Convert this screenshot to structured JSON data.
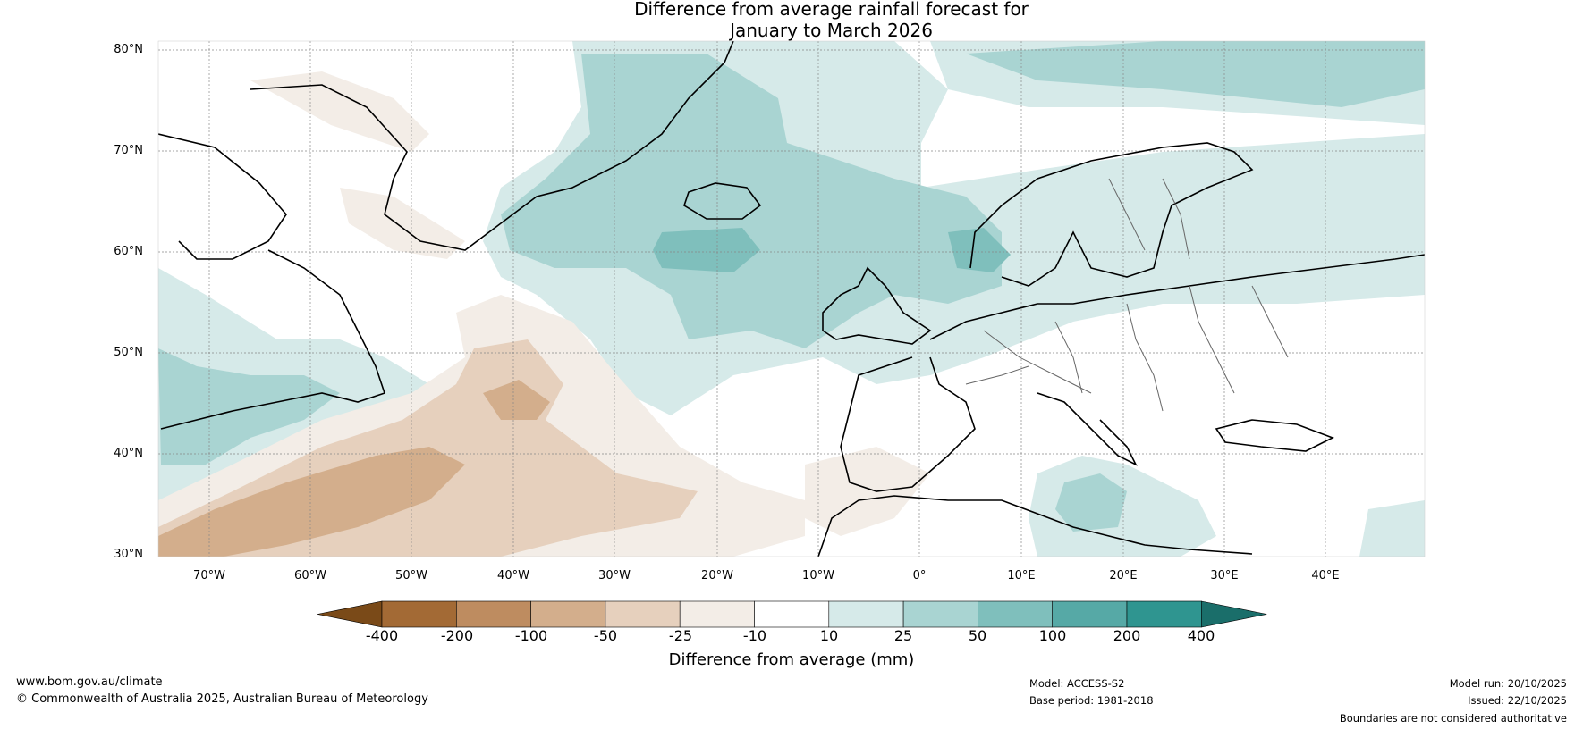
{
  "title_line1": "Difference from average rainfall forecast for",
  "title_line2": "January to March 2026",
  "lat_labels": [
    "80°N",
    "70°N",
    "60°N",
    "50°N",
    "40°N",
    "30°N"
  ],
  "lon_labels": [
    "70°W",
    "60°W",
    "50°W",
    "40°W",
    "30°W",
    "20°W",
    "10°W",
    "0°",
    "10°E",
    "20°E",
    "30°E",
    "40°E"
  ],
  "legend": {
    "title": "Difference from average (mm)",
    "ticks": [
      "-400",
      "-200",
      "-100",
      "-50",
      "-25",
      "-10",
      "10",
      "25",
      "50",
      "100",
      "200",
      "400"
    ],
    "colors": [
      "#7a4a18",
      "#a36a35",
      "#be8c60",
      "#d3ae8c",
      "#e6d0bd",
      "#f3ede7",
      "#ffffff",
      "#d6eae9",
      "#a9d4d2",
      "#7fbfbc",
      "#56a9a6",
      "#2f9590",
      "#1a6e6a"
    ]
  },
  "footer": {
    "website": "www.bom.gov.au/climate",
    "copyright": "© Commonwealth of Australia 2025, Australian Bureau of Meteorology",
    "model": "Model: ACCESS-S2",
    "base_period": "Base period: 1981-2018",
    "model_run": "Model run: 20/10/2025",
    "issued": "Issued: 22/10/2025",
    "disclaimer": "Boundaries are not considered authoritative"
  }
}
